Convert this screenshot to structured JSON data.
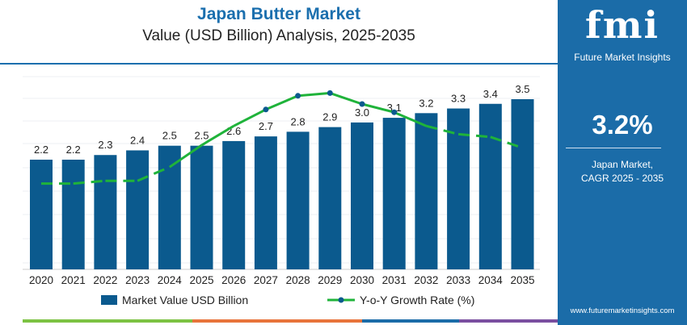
{
  "header": {
    "title": "Japan Butter Market",
    "subtitle": "Value (USD Billion) Analysis, 2025-2035"
  },
  "panel": {
    "logo": "fmi",
    "logo_text": "Future Market Insights",
    "cagr": "3.2%",
    "label_line1": "Japan Market,",
    "label_line2": "CAGR 2025 - 2035",
    "url": "www.futuremarketinsights.com"
  },
  "colors": {
    "bar": "#0b5a8e",
    "line": "#1fb33a",
    "marker": "#0b5a8e",
    "panel": "#1b6ca8",
    "title": "#1b6fae"
  },
  "chart_data": {
    "type": "bar",
    "categories": [
      "2020",
      "2021",
      "2022",
      "2023",
      "2024",
      "2025",
      "2026",
      "2027",
      "2028",
      "2029",
      "2030",
      "2031",
      "2032",
      "2033",
      "2034",
      "2035"
    ],
    "series": [
      {
        "name": "Market Value USD Billion",
        "type": "bar",
        "values": [
          2.2,
          2.2,
          2.3,
          2.4,
          2.5,
          2.5,
          2.6,
          2.7,
          2.8,
          2.9,
          3.0,
          3.1,
          3.2,
          3.3,
          3.4,
          3.5
        ]
      },
      {
        "name": "Y-o-Y Growth Rate (%)",
        "type": "line",
        "values": [
          1.1,
          1.1,
          1.2,
          1.2,
          1.7,
          2.5,
          3.2,
          3.8,
          4.3,
          4.4,
          4.0,
          3.7,
          3.2,
          2.9,
          2.8,
          2.4
        ]
      }
    ],
    "data_labels": [
      "2.2",
      "2.2",
      "2.3",
      "2.4",
      "2.5",
      "2.5",
      "2.6",
      "2.7",
      "2.8",
      "2.9",
      "3.0",
      "3.1",
      "3.2",
      "3.3",
      "3.4",
      "3.5"
    ],
    "legend": "bottom",
    "grid": true
  }
}
